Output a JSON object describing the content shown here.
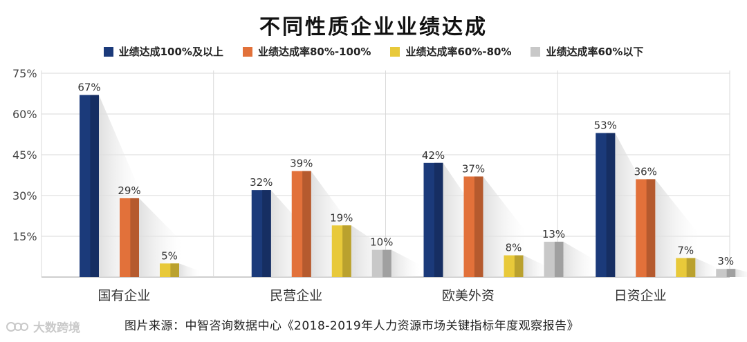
{
  "chart_data": {
    "type": "bar",
    "title": "不同性质企业业绩达成",
    "categories": [
      "国有企业",
      "民营企业",
      "欧美外资",
      "日资企业"
    ],
    "series": [
      {
        "name": "业绩达成100%及以上",
        "color": "#1b3a7a",
        "values": [
          67,
          32,
          42,
          53
        ],
        "labels": [
          "67%",
          "32%",
          "42%",
          "53%"
        ]
      },
      {
        "name": "业绩达成率80%-100%",
        "color": "#e2713a",
        "values": [
          29,
          39,
          37,
          36
        ],
        "labels": [
          "29%",
          "39%",
          "37%",
          "36%"
        ]
      },
      {
        "name": "业绩达成率60%-80%",
        "color": "#e8c93a",
        "values": [
          5,
          19,
          8,
          7
        ],
        "labels": [
          "5%",
          "19%",
          "8%",
          "7%"
        ]
      },
      {
        "name": "业绩达成率60%以下",
        "color": "#c8c8c8",
        "values": [
          0,
          10,
          13,
          3
        ],
        "labels": [
          "",
          "10%",
          "13%",
          "3%"
        ]
      }
    ],
    "yticks": [
      15,
      30,
      45,
      60,
      75
    ],
    "ytick_labels": [
      "15%",
      "30%",
      "45%",
      "60%",
      "75%"
    ],
    "ylim": [
      0,
      75
    ],
    "xlabel": "",
    "ylabel": "",
    "legend_position": "top"
  },
  "source_text": "图片来源：中智咨询数据中心《2018-2019年人力资源市场关键指标年度观察报告》",
  "watermark_text": "大数跨境"
}
